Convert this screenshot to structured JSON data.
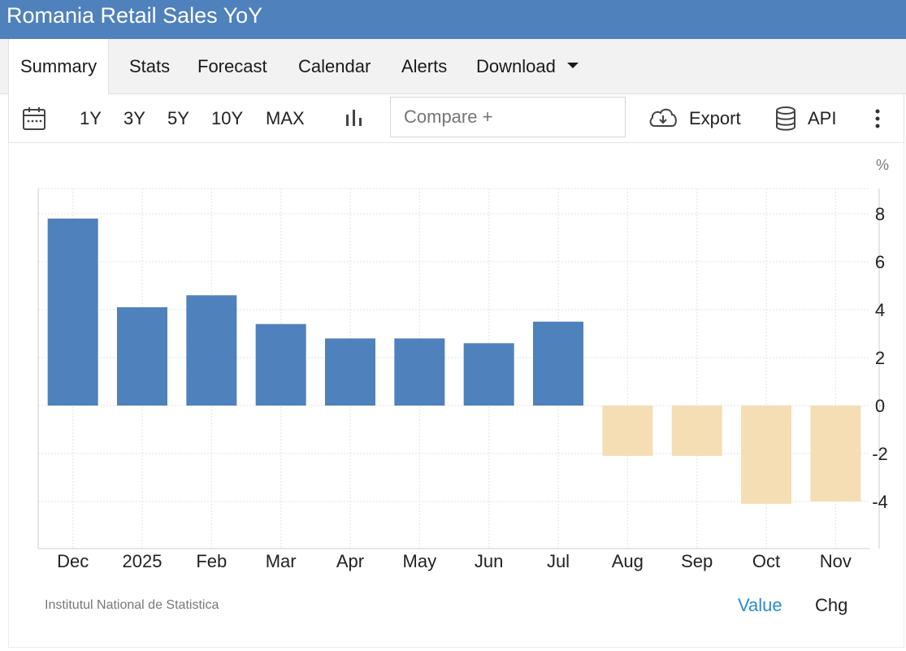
{
  "header": {
    "title": "Romania Retail Sales YoY"
  },
  "tabs": [
    {
      "label": "Summary",
      "active": true
    },
    {
      "label": "Stats"
    },
    {
      "label": "Forecast"
    },
    {
      "label": "Calendar"
    },
    {
      "label": "Alerts"
    },
    {
      "label": "Download"
    }
  ],
  "toolbar": {
    "ranges": [
      "1Y",
      "3Y",
      "5Y",
      "10Y",
      "MAX"
    ],
    "compare_placeholder": "Compare +",
    "export_label": "Export",
    "api_label": "API",
    "icons": [
      "calendar-icon",
      "bar-chart-icon",
      "cloud-download-icon",
      "database-icon",
      "more-vert-icon"
    ]
  },
  "footer": {
    "source": "Institutul National de Statistica",
    "value_label": "Value",
    "chg_label": "Chg"
  },
  "colors": {
    "header": "#4f81bd",
    "positive": "#4f81bd",
    "negative": "#f5deb3",
    "link": "#2a8ad4"
  },
  "chart_data": {
    "type": "bar",
    "unit": "%",
    "categories": [
      "Dec",
      "2025",
      "Feb",
      "Mar",
      "Apr",
      "May",
      "Jun",
      "Jul",
      "Aug",
      "Sep",
      "Oct",
      "Nov"
    ],
    "values": [
      7.8,
      4.1,
      4.6,
      3.4,
      2.8,
      2.8,
      2.6,
      3.5,
      -2.1,
      -2.1,
      -4.1,
      -4.0
    ],
    "yticks": [
      8,
      6,
      4,
      2,
      0,
      -2,
      -4
    ],
    "ylim": [
      -6,
      9
    ],
    "grid": true,
    "axis_position": "right"
  }
}
